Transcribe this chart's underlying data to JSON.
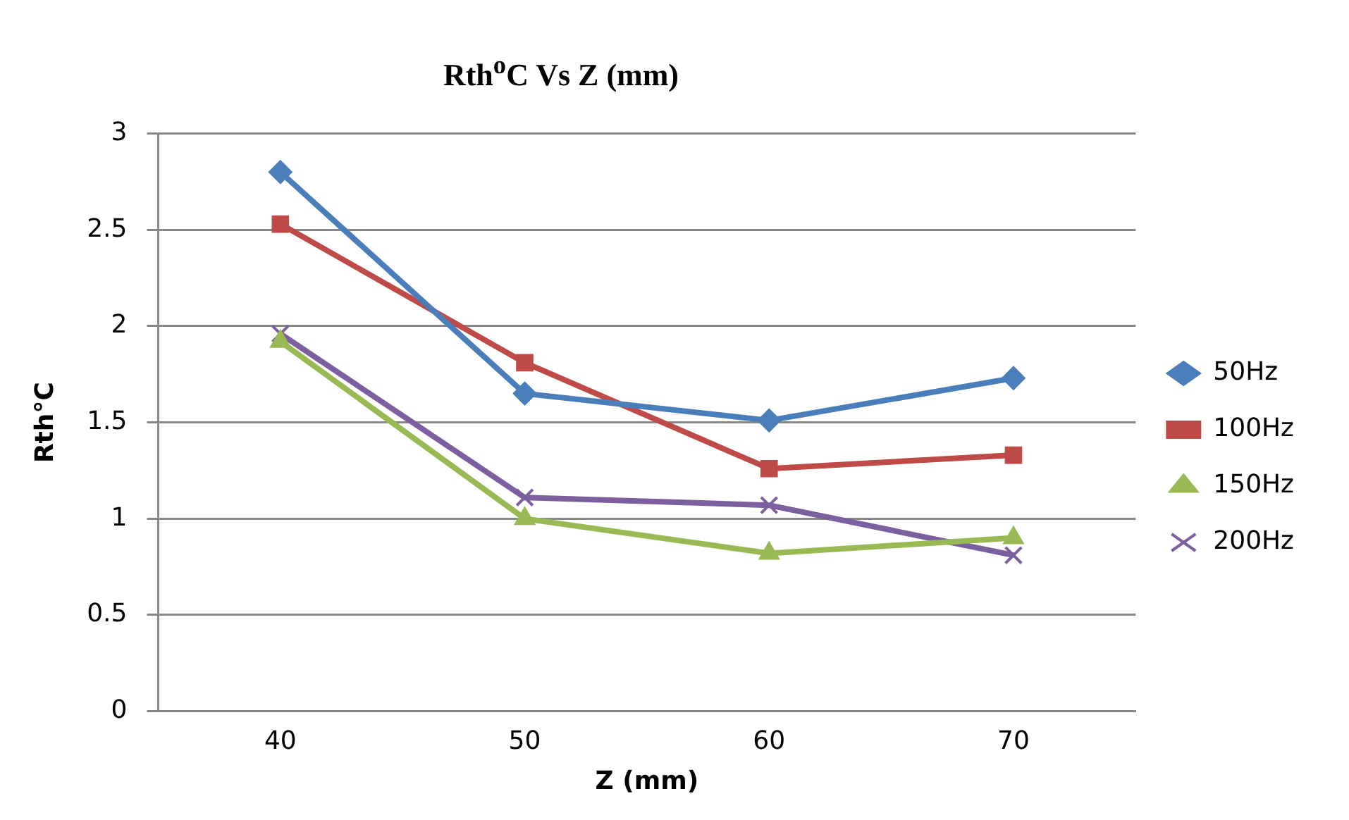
{
  "chart_data": {
    "type": "line",
    "title": "Rth$^{o}$C Vs Z (mm)",
    "xlabel": "Z (mm)",
    "ylabel": "Rth°C",
    "categories": [
      "40",
      "50",
      "60",
      "70"
    ],
    "series": [
      {
        "name": "50Hz",
        "color": "#4a7ebb",
        "marker": "diamond",
        "values": [
          2.8,
          1.65,
          1.51,
          1.73
        ]
      },
      {
        "name": "100Hz",
        "color": "#be4b48",
        "marker": "square",
        "values": [
          2.53,
          1.81,
          1.26,
          1.33
        ]
      },
      {
        "name": "150Hz",
        "color": "#98b954",
        "marker": "triangle",
        "values": [
          1.92,
          1.0,
          0.82,
          0.9
        ]
      },
      {
        "name": "200Hz",
        "color": "#7d5fa0",
        "marker": "cross",
        "values": [
          1.96,
          1.11,
          1.07,
          0.81
        ]
      }
    ],
    "ylim": [
      0,
      3
    ],
    "yticks": [
      0,
      0.5,
      1,
      1.5,
      2,
      2.5,
      3
    ],
    "grid": "y",
    "legend": "right",
    "line_style": "solid"
  }
}
